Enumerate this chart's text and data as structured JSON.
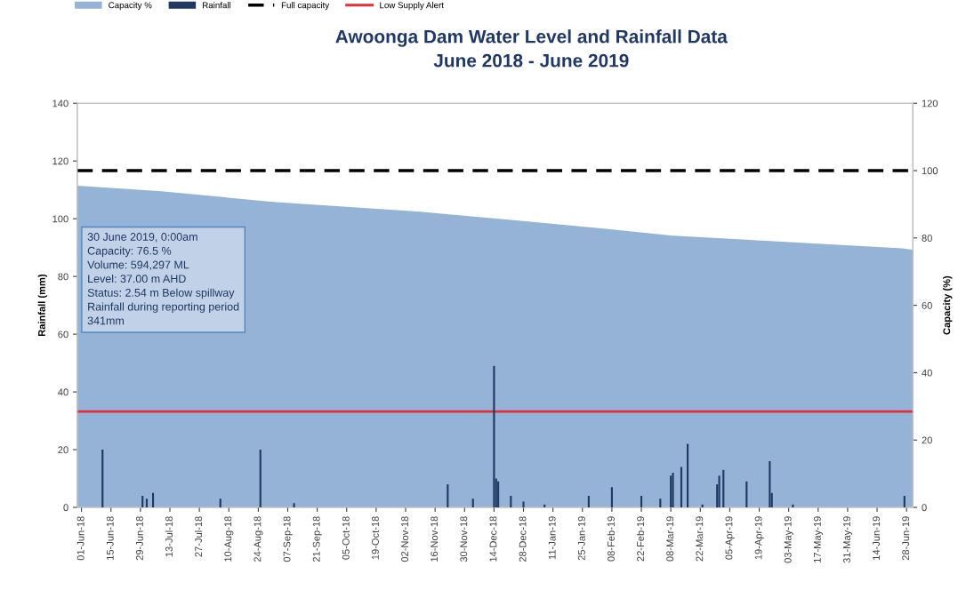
{
  "chart_data": {
    "type": "bar",
    "title": "Awoonga Dam Water Level and Rainfall Data\nJune 2018 - June 2019",
    "ylabel": "Rainfall (mm)",
    "y2label": "Capacity (%)",
    "xlim": [
      "2018-05-30",
      "2019-07-01"
    ],
    "xticks": [
      {
        "value": "2018-06-01",
        "label": "01-Jun-18"
      },
      {
        "value": "2018-06-15",
        "label": "15-Jun-18"
      },
      {
        "value": "2018-06-29",
        "label": "29-Jun-18"
      },
      {
        "value": "2018-07-13",
        "label": "13-Jul-18"
      },
      {
        "value": "2018-07-27",
        "label": "27-Jul-18"
      },
      {
        "value": "2018-08-10",
        "label": "10-Aug-18"
      },
      {
        "value": "2018-08-24",
        "label": "24-Aug-18"
      },
      {
        "value": "2018-09-07",
        "label": "07-Sep-18"
      },
      {
        "value": "2018-09-21",
        "label": "21-Sep-18"
      },
      {
        "value": "2018-10-05",
        "label": "05-Oct-18"
      },
      {
        "value": "2018-10-19",
        "label": "19-Oct-18"
      },
      {
        "value": "2018-11-02",
        "label": "02-Nov-18"
      },
      {
        "value": "2018-11-16",
        "label": "16-Nov-18"
      },
      {
        "value": "2018-11-30",
        "label": "30-Nov-18"
      },
      {
        "value": "2018-12-14",
        "label": "14-Dec-18"
      },
      {
        "value": "2018-12-28",
        "label": "28-Dec-18"
      },
      {
        "value": "2019-01-11",
        "label": "11-Jan-19"
      },
      {
        "value": "2019-01-25",
        "label": "25-Jan-19"
      },
      {
        "value": "2019-02-08",
        "label": "08-Feb-19"
      },
      {
        "value": "2019-02-22",
        "label": "22-Feb-19"
      },
      {
        "value": "2019-03-08",
        "label": "08-Mar-19"
      },
      {
        "value": "2019-03-22",
        "label": "22-Mar-19"
      },
      {
        "value": "2019-04-05",
        "label": "05-Apr-19"
      },
      {
        "value": "2019-04-19",
        "label": "19-Apr-19"
      },
      {
        "value": "2019-05-03",
        "label": "03-May-19"
      },
      {
        "value": "2019-05-17",
        "label": "17-May-19"
      },
      {
        "value": "2019-05-31",
        "label": "31-May-19"
      },
      {
        "value": "2019-06-14",
        "label": "14-Jun-19"
      },
      {
        "value": "2019-06-28",
        "label": "28-Jun-19"
      }
    ],
    "ylim": [
      0,
      140
    ],
    "yticks": [
      0,
      20,
      40,
      60,
      80,
      100,
      120,
      140
    ],
    "y2lim": [
      0,
      120
    ],
    "y2ticks": [
      0,
      20,
      40,
      60,
      80,
      100,
      120
    ],
    "series": [
      {
        "name": "Capacity %",
        "type": "area",
        "axis": "y2",
        "color": "#95b3d7",
        "x": [
          "2018-05-30",
          "2018-07-09",
          "2018-08-31",
          "2018-11-09",
          "2018-12-21",
          "2019-02-04",
          "2019-03-09",
          "2019-06-26",
          "2019-07-01"
        ],
        "values": [
          95.5,
          93.9,
          90.7,
          87.8,
          85.4,
          82.8,
          80.7,
          76.9,
          76.5
        ]
      },
      {
        "name": "Rainfall",
        "color": "#1f3864",
        "x": [
          "2018-06-11",
          "2018-06-30",
          "2018-07-02",
          "2018-07-05",
          "2018-08-06",
          "2018-08-25",
          "2018-09-10",
          "2018-11-22",
          "2018-12-04",
          "2018-12-14",
          "2018-12-15",
          "2018-12-16",
          "2018-12-22",
          "2018-12-28",
          "2019-01-07",
          "2019-01-28",
          "2019-02-08",
          "2019-02-22",
          "2019-03-03",
          "2019-03-08",
          "2019-03-09",
          "2019-03-13",
          "2019-03-16",
          "2019-03-23",
          "2019-03-30",
          "2019-03-31",
          "2019-04-02",
          "2019-04-13",
          "2019-04-24",
          "2019-04-25",
          "2019-05-05",
          "2019-06-27"
        ],
        "values": [
          20,
          4,
          3,
          5,
          3,
          20,
          1.5,
          8,
          3,
          49,
          10,
          9,
          4,
          2,
          1,
          4,
          7,
          4,
          3,
          11,
          12,
          14,
          22,
          1,
          8,
          11,
          13,
          9,
          16,
          5,
          1,
          4
        ]
      }
    ],
    "ref_lines": [
      {
        "axis": "y2",
        "value": 100,
        "label": "Full capacity",
        "color": "#000000",
        "line_style": "dashed"
      },
      {
        "axis": "y2",
        "value": 28.5,
        "label": "Low Supply Alert",
        "color": "#e0303a",
        "line_style": "solid"
      }
    ],
    "annotations": [
      "30 June 2019, 0:00am\nCapacity: 76.5 %\nVolume: 594,297 ML\nLevel: 37.00 m AHD\nStatus: 2.54 m Below spillway\nRainfall during reporting period\n341mm"
    ],
    "legend": "top left",
    "grid": false
  }
}
